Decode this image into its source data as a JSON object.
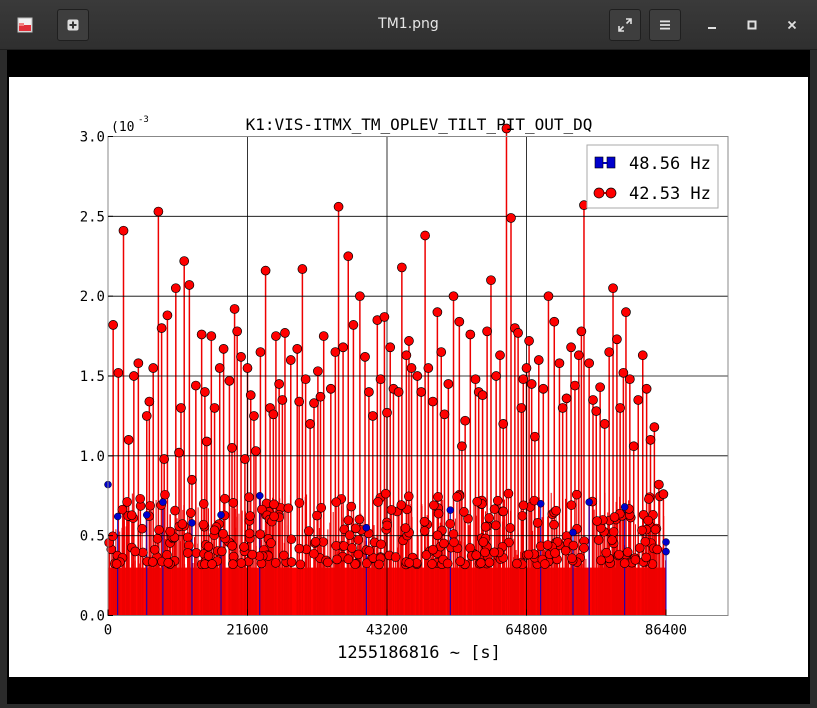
{
  "window": {
    "title": "TM1.png",
    "new_tab_icon": "plus-square-icon",
    "app_icon": "image-viewer-icon",
    "fullscreen_icon": "expand-arrows-icon",
    "menu_icon": "hamburger-menu-icon",
    "minimize_icon": "minimize-icon",
    "maximize_icon": "maximize-icon",
    "close_icon": "close-icon"
  },
  "chart_data": {
    "type": "scatter",
    "title": "K1:VIS-ITMX_TM_OPLEV_TILT_PIT_OUT_DQ",
    "xlabel": "1255186816 ~ [s]",
    "ylabel": "",
    "y_scale_label": "(10",
    "y_scale_exp": "-3",
    "xlim": [
      0,
      86400
    ],
    "ylim": [
      0,
      3.0
    ],
    "x_ticks": [
      "0",
      "21600",
      "43200",
      "64800",
      "86400"
    ],
    "y_ticks": [
      "0.0",
      "0.5",
      "1.0",
      "1.5",
      "2.0",
      "2.5",
      "3.0"
    ],
    "grid": true,
    "legend_position": "top-right",
    "colors": {
      "series1": "#0000cc",
      "series2": "#ff0000",
      "stem": "#ee0000"
    },
    "series": [
      {
        "name": "48.56 Hz",
        "style": "stem",
        "x": [
          0,
          1500,
          6000,
          8500,
          13000,
          17500,
          23500,
          40000,
          53000,
          67000,
          72000,
          74500,
          80000,
          86400,
          86400
        ],
        "y": [
          0.82,
          0.62,
          0.63,
          0.71,
          0.58,
          0.63,
          0.75,
          0.55,
          0.66,
          0.7,
          0.52,
          0.71,
          0.68,
          0.46,
          0.4
        ]
      },
      {
        "name": "42.53 Hz",
        "style": "stem",
        "x": [
          800,
          1600,
          2400,
          3200,
          4000,
          4700,
          6000,
          6400,
          7000,
          7800,
          8300,
          8700,
          9200,
          10500,
          11000,
          11300,
          11800,
          12600,
          13000,
          13600,
          14500,
          15000,
          15300,
          16000,
          16500,
          17300,
          17900,
          18800,
          19200,
          19600,
          20000,
          20600,
          21200,
          21600,
          22100,
          22600,
          22900,
          23600,
          24400,
          25100,
          25600,
          26000,
          26500,
          27000,
          27400,
          28300,
          29300,
          29600,
          30100,
          30600,
          31300,
          31900,
          32500,
          32900,
          33400,
          34500,
          35200,
          35700,
          36400,
          37200,
          38000,
          39000,
          39800,
          40400,
          41000,
          41700,
          42200,
          42800,
          43200,
          43700,
          44200,
          45000,
          45500,
          46200,
          46600,
          47000,
          47900,
          48500,
          49100,
          49600,
          50300,
          51000,
          51600,
          52100,
          52700,
          53500,
          54400,
          54800,
          55300,
          56100,
          56900,
          57400,
          58000,
          58700,
          59300,
          60100,
          60700,
          61200,
          61700,
          62400,
          63000,
          63500,
          64000,
          64300,
          64800,
          65200,
          65600,
          66100,
          66700,
          67400,
          68200,
          69100,
          69900,
          70400,
          71000,
          71700,
          72300,
          72900,
          73300,
          73700,
          74500,
          75100,
          75600,
          76200,
          76900,
          77600,
          78200,
          78800,
          79300,
          79800,
          80200,
          80800,
          81400,
          82100,
          82800,
          83400,
          84000,
          84600,
          85300,
          86000
        ],
        "y": [
          1.82,
          1.52,
          2.41,
          1.1,
          1.5,
          1.58,
          1.25,
          1.34,
          1.55,
          2.53,
          1.8,
          0.98,
          1.88,
          2.05,
          1.02,
          1.3,
          2.22,
          2.07,
          0.85,
          1.44,
          1.76,
          1.4,
          1.09,
          1.75,
          1.3,
          1.55,
          1.67,
          1.47,
          1.05,
          1.92,
          1.78,
          1.62,
          0.98,
          1.55,
          1.38,
          1.25,
          1.03,
          1.65,
          2.16,
          1.3,
          1.26,
          1.75,
          1.45,
          1.35,
          1.77,
          1.6,
          1.67,
          1.34,
          2.17,
          1.48,
          1.2,
          1.33,
          1.53,
          1.37,
          1.75,
          1.42,
          1.65,
          2.56,
          1.68,
          2.25,
          1.82,
          2.0,
          1.62,
          1.4,
          1.25,
          1.85,
          1.48,
          1.87,
          1.27,
          1.68,
          1.42,
          1.4,
          2.18,
          1.63,
          1.72,
          1.55,
          1.5,
          1.4,
          2.38,
          1.55,
          1.34,
          1.9,
          1.65,
          1.26,
          1.45,
          2.0,
          1.84,
          1.06,
          1.22,
          1.76,
          1.48,
          1.4,
          1.38,
          1.78,
          2.1,
          1.5,
          1.63,
          1.2,
          3.05,
          2.49,
          1.8,
          1.77,
          1.3,
          1.48,
          1.55,
          1.72,
          1.45,
          1.12,
          1.6,
          1.42,
          2.0,
          1.84,
          1.58,
          1.3,
          1.36,
          1.68,
          1.44,
          1.63,
          1.78,
          2.57,
          1.58,
          1.35,
          1.28,
          1.43,
          1.2,
          1.65,
          2.05,
          1.73,
          1.3,
          1.52,
          1.9,
          1.48,
          1.06,
          1.35,
          1.63,
          1.42,
          1.1,
          1.18,
          0.82,
          0.76
        ]
      }
    ]
  }
}
